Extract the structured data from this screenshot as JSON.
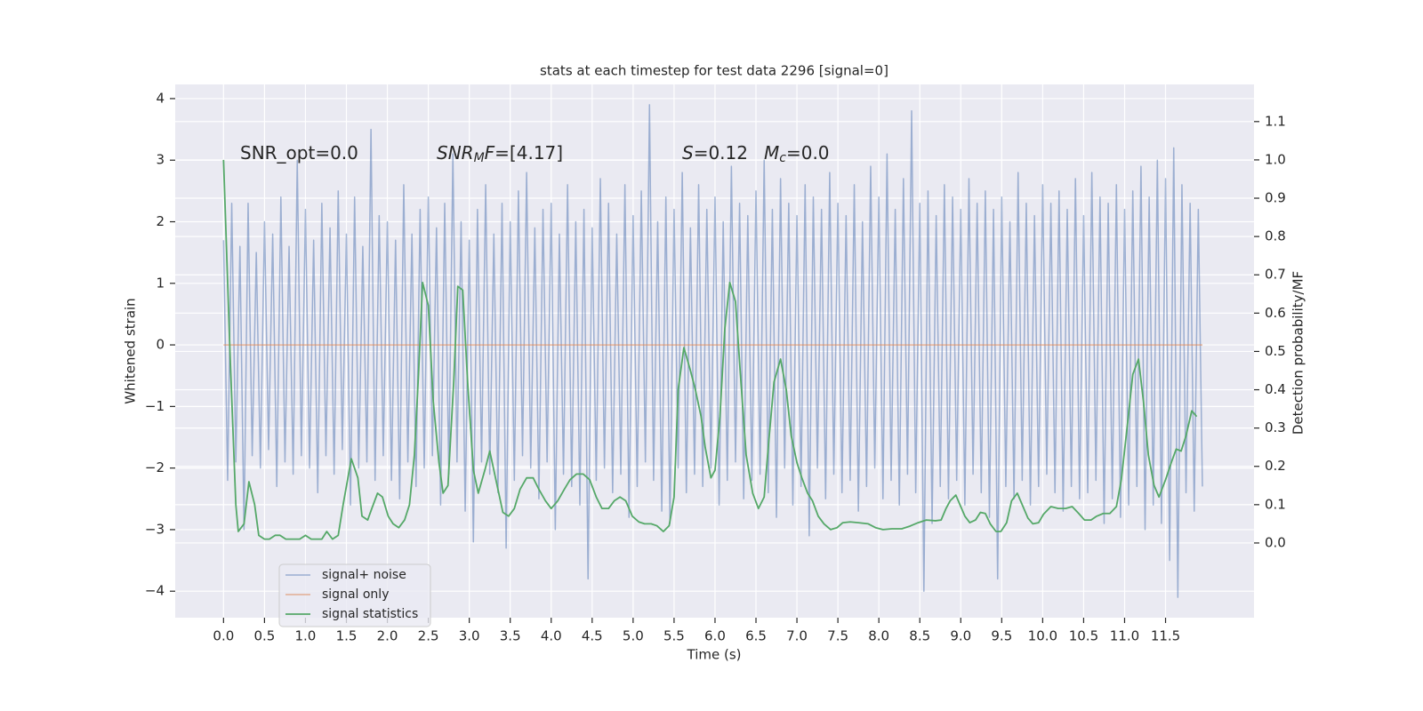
{
  "chart_data": {
    "type": "line",
    "title": "stats at each timestep for test data 2296 [signal=0]",
    "xlabel": "Time (s)",
    "ylabel": "Whitened strain",
    "y2label": "Detection probability/MF",
    "annotations": [
      [
        "SNR_opt=0.0"
      ],
      [
        "SNR",
        "M",
        "F",
        "=[4.17]"
      ],
      [
        "S",
        "=0.12"
      ],
      [
        "M",
        "c",
        "=0.0"
      ]
    ],
    "xlim": [
      -0.59,
      12.58
    ],
    "ylim": [
      -4.43,
      4.23
    ],
    "y2lim": [
      -0.195,
      1.197
    ],
    "xticks": [
      {
        "value": 0,
        "label": "0.0"
      },
      0.5,
      {
        "value": 1,
        "label": "1.0"
      },
      1.5,
      {
        "value": 2,
        "label": "2.0"
      },
      2.5,
      {
        "value": 3,
        "label": "3.0"
      },
      3.5,
      {
        "value": 4,
        "label": "4.0"
      },
      4.5,
      {
        "value": 5,
        "label": "5.0"
      },
      5.5,
      {
        "value": 6,
        "label": "6.0"
      },
      6.5,
      {
        "value": 7,
        "label": "7.0"
      },
      7.5,
      {
        "value": 8,
        "label": "8.0"
      },
      8.5,
      {
        "value": 9,
        "label": "9.0"
      },
      9.5,
      {
        "value": 10,
        "label": "10.0"
      },
      10.5,
      {
        "value": 11,
        "label": "11.0"
      },
      11.5
    ],
    "yticks": [
      {
        "value": -4,
        "label": "−4"
      },
      {
        "value": -3,
        "label": "−3"
      },
      {
        "value": -2,
        "label": "−2"
      },
      {
        "value": -1,
        "label": "−1"
      },
      0,
      1,
      2,
      3,
      4
    ],
    "y2ticks": [
      {
        "value": 0,
        "label": "0.0"
      },
      0.1,
      0.2,
      0.3,
      0.4,
      0.5,
      0.6,
      0.7,
      0.8,
      0.9,
      {
        "value": 1,
        "label": "1.0"
      },
      1.1
    ],
    "grid": true,
    "legend": "lower left",
    "series": [
      {
        "name": "signal+ noise",
        "color": "#4c72b0",
        "x": [
          0,
          0.05,
          0.1,
          0.15,
          0.2,
          0.25,
          0.3,
          0.35,
          0.4,
          0.45,
          0.5,
          0.55,
          0.6,
          0.65,
          0.7,
          0.75,
          0.8,
          0.85,
          0.9,
          0.95,
          1,
          1.05,
          1.1,
          1.15,
          1.2,
          1.25,
          1.3,
          1.35,
          1.4,
          1.45,
          1.5,
          1.55,
          1.6,
          1.65,
          1.7,
          1.75,
          1.8,
          1.85,
          1.9,
          1.95,
          2,
          2.05,
          2.1,
          2.15,
          2.2,
          2.25,
          2.3,
          2.35,
          2.4,
          2.45,
          2.5,
          2.55,
          2.6,
          2.65,
          2.7,
          2.75,
          2.8,
          2.85,
          2.9,
          2.95,
          3,
          3.05,
          3.1,
          3.15,
          3.2,
          3.25,
          3.3,
          3.35,
          3.4,
          3.45,
          3.5,
          3.55,
          3.6,
          3.65,
          3.7,
          3.75,
          3.8,
          3.85,
          3.9,
          3.95,
          4,
          4.05,
          4.1,
          4.15,
          4.2,
          4.25,
          4.3,
          4.35,
          4.4,
          4.45,
          4.5,
          4.55,
          4.6,
          4.65,
          4.7,
          4.75,
          4.8,
          4.85,
          4.9,
          4.95,
          5,
          5.05,
          5.1,
          5.15,
          5.2,
          5.25,
          5.3,
          5.35,
          5.4,
          5.45,
          5.5,
          5.55,
          5.6,
          5.65,
          5.7,
          5.75,
          5.8,
          5.85,
          5.9,
          5.95,
          6,
          6.05,
          6.1,
          6.15,
          6.2,
          6.25,
          6.3,
          6.35,
          6.4,
          6.45,
          6.5,
          6.55,
          6.6,
          6.65,
          6.7,
          6.75,
          6.8,
          6.85,
          6.9,
          6.95,
          7,
          7.05,
          7.1,
          7.15,
          7.2,
          7.25,
          7.3,
          7.35,
          7.4,
          7.45,
          7.5,
          7.55,
          7.6,
          7.65,
          7.7,
          7.75,
          7.8,
          7.85,
          7.9,
          7.95,
          8,
          8.05,
          8.1,
          8.15,
          8.2,
          8.25,
          8.3,
          8.35,
          8.4,
          8.45,
          8.5,
          8.55,
          8.6,
          8.65,
          8.7,
          8.75,
          8.8,
          8.85,
          8.9,
          8.95,
          9,
          9.05,
          9.1,
          9.15,
          9.2,
          9.25,
          9.3,
          9.35,
          9.4,
          9.45,
          9.5,
          9.55,
          9.6,
          9.65,
          9.7,
          9.75,
          9.8,
          9.85,
          9.9,
          9.95,
          10,
          10.05,
          10.1,
          10.15,
          10.2,
          10.25,
          10.3,
          10.35,
          10.4,
          10.45,
          10.5,
          10.55,
          10.6,
          10.65,
          10.7,
          10.75,
          10.8,
          10.85,
          10.9,
          10.95,
          11,
          11.05,
          11.1,
          11.15,
          11.2,
          11.25,
          11.3,
          11.35,
          11.4,
          11.45,
          11.5,
          11.55,
          11.6,
          11.65,
          11.7,
          11.75,
          11.8,
          11.85,
          11.9,
          11.95
        ],
        "values": [
          1.7,
          -2.2,
          2.3,
          -1.9,
          1.6,
          -3.0,
          2.3,
          -1.8,
          1.5,
          -2.0,
          2.0,
          -1.7,
          1.8,
          -2.3,
          2.4,
          -1.9,
          1.6,
          -2.1,
          3.0,
          -1.8,
          2.2,
          -2.0,
          1.7,
          -2.4,
          2.3,
          -1.8,
          1.9,
          -2.1,
          2.5,
          -1.7,
          1.8,
          -2.6,
          2.4,
          -2.0,
          1.6,
          -1.9,
          3.5,
          -2.2,
          2.1,
          -1.8,
          2.0,
          -2.2,
          1.7,
          -2.5,
          2.6,
          -1.9,
          1.8,
          -2.3,
          2.2,
          -2.0,
          2.4,
          -1.8,
          1.9,
          -2.6,
          2.3,
          -2.1,
          3.1,
          -1.9,
          2.0,
          -2.7,
          1.7,
          -3.2,
          2.2,
          -1.9,
          2.6,
          -2.1,
          1.8,
          -2.4,
          2.3,
          -3.3,
          2.0,
          -2.2,
          2.5,
          -1.8,
          2.8,
          -2.0,
          1.9,
          -2.5,
          2.2,
          -1.9,
          2.3,
          -3.0,
          1.8,
          -2.1,
          2.6,
          -2.3,
          2.0,
          -2.6,
          2.2,
          -3.8,
          1.9,
          -2.2,
          2.7,
          -2.0,
          2.3,
          -2.4,
          1.8,
          -2.1,
          2.6,
          -2.8,
          2.1,
          -2.3,
          2.5,
          -1.9,
          3.9,
          -2.2,
          2.0,
          -2.7,
          2.4,
          -2.9,
          2.2,
          -2.0,
          2.8,
          -2.4,
          1.9,
          -2.1,
          2.6,
          -2.3,
          2.2,
          -2.0,
          2.4,
          -2.6,
          2.0,
          -2.2,
          2.9,
          -1.9,
          2.3,
          -2.5,
          2.1,
          -2.2,
          2.5,
          -2.1,
          3.0,
          -2.4,
          2.2,
          -2.8,
          2.7,
          -2.0,
          2.3,
          -2.6,
          2.1,
          -2.3,
          2.6,
          -3.1,
          2.4,
          -2.0,
          2.2,
          -2.5,
          2.8,
          -2.1,
          2.3,
          -2.4,
          2.1,
          -2.2,
          2.6,
          -2.7,
          2.0,
          -2.3,
          2.9,
          -2.0,
          2.4,
          -2.5,
          3.1,
          -2.2,
          2.2,
          -2.6,
          2.7,
          -2.1,
          3.8,
          -2.4,
          2.3,
          -4.0,
          2.5,
          -2.9,
          2.1,
          -2.3,
          2.6,
          -2.5,
          2.4,
          -2.2,
          2.2,
          -2.6,
          2.7,
          -2.1,
          2.3,
          -2.4,
          2.5,
          -2.8,
          2.2,
          -3.8,
          2.4,
          -2.3,
          2.0,
          -2.5,
          2.8,
          -2.2,
          2.3,
          -2.6,
          2.1,
          -2.3,
          2.6,
          -2.1,
          2.3,
          -2.4,
          2.5,
          -2.7,
          2.2,
          -2.3,
          2.7,
          -2.5,
          2.1,
          -2.4,
          2.8,
          -2.2,
          2.4,
          -2.9,
          2.3,
          -2.5,
          2.6,
          -2.8,
          2.2,
          -2.6,
          2.5,
          -2.3,
          2.9,
          -3.0,
          2.4,
          -2.6,
          3.0,
          -2.9,
          2.7,
          -3.5,
          3.2,
          -4.1,
          2.6,
          -2.4,
          2.3,
          -2.7,
          2.2,
          -2.3
        ]
      },
      {
        "name": "signal only",
        "color": "#dd8452",
        "x": [
          0,
          11.95
        ],
        "values": [
          0,
          0
        ]
      },
      {
        "name": "signal statistics",
        "color": "#55a868",
        "axis": "y2",
        "x": [
          0,
          0.08,
          0.15,
          0.18,
          0.25,
          0.31,
          0.38,
          0.43,
          0.5,
          0.56,
          0.63,
          0.69,
          0.76,
          0.84,
          0.93,
          1.0,
          1.07,
          1.15,
          1.2,
          1.26,
          1.33,
          1.4,
          1.46,
          1.56,
          1.64,
          1.69,
          1.76,
          1.81,
          1.88,
          1.94,
          2.01,
          2.07,
          2.14,
          2.21,
          2.27,
          2.33,
          2.38,
          2.43,
          2.5,
          2.56,
          2.63,
          2.68,
          2.74,
          2.81,
          2.86,
          2.92,
          2.98,
          3.05,
          3.11,
          3.19,
          3.25,
          3.33,
          3.41,
          3.48,
          3.55,
          3.62,
          3.7,
          3.78,
          3.85,
          3.93,
          4.0,
          4.08,
          4.16,
          4.23,
          4.31,
          4.39,
          4.47,
          4.55,
          4.62,
          4.7,
          4.77,
          4.84,
          4.91,
          4.99,
          5.07,
          5.14,
          5.22,
          5.29,
          5.37,
          5.44,
          5.5,
          5.55,
          5.62,
          5.7,
          5.76,
          5.83,
          5.88,
          5.95,
          6.0,
          6.06,
          6.12,
          6.18,
          6.25,
          6.31,
          6.38,
          6.46,
          6.53,
          6.6,
          6.65,
          6.72,
          6.8,
          6.87,
          6.93,
          7.0,
          7.06,
          7.13,
          7.19,
          7.26,
          7.33,
          7.41,
          7.49,
          7.56,
          7.65,
          7.75,
          7.87,
          7.96,
          8.05,
          8.16,
          8.28,
          8.38,
          8.48,
          8.58,
          8.69,
          8.76,
          8.82,
          8.87,
          8.94,
          8.99,
          9.05,
          9.11,
          9.18,
          9.24,
          9.3,
          9.36,
          9.43,
          9.49,
          9.56,
          9.62,
          9.69,
          9.75,
          9.82,
          9.88,
          9.95,
          10.01,
          10.1,
          10.19,
          10.28,
          10.36,
          10.44,
          10.51,
          10.59,
          10.66,
          10.74,
          10.82,
          10.9,
          10.96,
          11.03,
          11.1,
          11.17,
          11.23,
          11.29,
          11.36,
          11.42,
          11.5,
          11.57,
          11.63,
          11.69,
          11.75,
          11.82,
          11.88
        ],
        "values": [
          1.0,
          0.49,
          0.1,
          0.03,
          0.05,
          0.16,
          0.1,
          0.02,
          0.01,
          0.01,
          0.02,
          0.02,
          0.01,
          0.01,
          0.01,
          0.02,
          0.01,
          0.01,
          0.01,
          0.03,
          0.01,
          0.02,
          0.1,
          0.22,
          0.17,
          0.07,
          0.06,
          0.09,
          0.13,
          0.12,
          0.07,
          0.05,
          0.04,
          0.06,
          0.1,
          0.23,
          0.44,
          0.68,
          0.62,
          0.37,
          0.21,
          0.13,
          0.15,
          0.42,
          0.67,
          0.66,
          0.42,
          0.19,
          0.13,
          0.19,
          0.24,
          0.16,
          0.08,
          0.07,
          0.09,
          0.14,
          0.17,
          0.17,
          0.14,
          0.11,
          0.09,
          0.11,
          0.14,
          0.165,
          0.18,
          0.18,
          0.165,
          0.12,
          0.09,
          0.09,
          0.11,
          0.12,
          0.11,
          0.07,
          0.055,
          0.05,
          0.05,
          0.045,
          0.03,
          0.045,
          0.12,
          0.4,
          0.51,
          0.45,
          0.4,
          0.33,
          0.25,
          0.17,
          0.19,
          0.33,
          0.56,
          0.68,
          0.63,
          0.44,
          0.23,
          0.13,
          0.09,
          0.12,
          0.25,
          0.42,
          0.48,
          0.4,
          0.28,
          0.21,
          0.17,
          0.13,
          0.11,
          0.07,
          0.05,
          0.035,
          0.04,
          0.053,
          0.055,
          0.053,
          0.05,
          0.04,
          0.035,
          0.037,
          0.037,
          0.044,
          0.053,
          0.06,
          0.058,
          0.06,
          0.09,
          0.11,
          0.125,
          0.1,
          0.07,
          0.053,
          0.06,
          0.08,
          0.077,
          0.05,
          0.03,
          0.03,
          0.053,
          0.11,
          0.13,
          0.1,
          0.065,
          0.05,
          0.053,
          0.075,
          0.095,
          0.09,
          0.09,
          0.095,
          0.077,
          0.06,
          0.06,
          0.07,
          0.077,
          0.077,
          0.095,
          0.165,
          0.3,
          0.44,
          0.48,
          0.37,
          0.23,
          0.15,
          0.12,
          0.165,
          0.21,
          0.245,
          0.24,
          0.28,
          0.345,
          0.33
        ]
      }
    ]
  }
}
